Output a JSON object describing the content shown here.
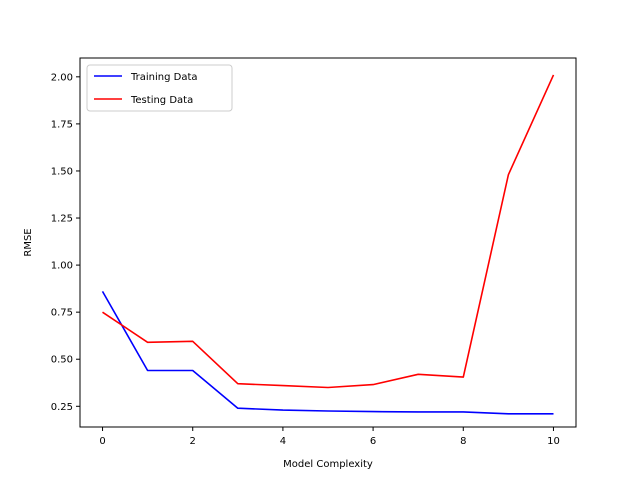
{
  "chart_data": {
    "type": "line",
    "xlabel": "Model Complexity",
    "ylabel": "RMSE",
    "xlim": [
      -0.5,
      10.5
    ],
    "ylim": [
      0.14,
      2.1
    ],
    "xticks": [
      0,
      2,
      4,
      6,
      8,
      10
    ],
    "yticks": [
      0.25,
      0.5,
      0.75,
      1.0,
      1.25,
      1.5,
      1.75,
      2.0
    ],
    "xtick_labels": [
      "0",
      "2",
      "4",
      "6",
      "8",
      "10"
    ],
    "ytick_labels": [
      "0.25",
      "0.50",
      "0.75",
      "1.00",
      "1.25",
      "1.50",
      "1.75",
      "2.00"
    ],
    "grid": false,
    "legend_position": "top-left",
    "x": [
      0,
      1,
      2,
      3,
      4,
      5,
      6,
      7,
      8,
      9,
      10
    ],
    "series": [
      {
        "name": "Training Data",
        "color": "#0000ff",
        "values": [
          0.86,
          0.44,
          0.44,
          0.24,
          0.23,
          0.225,
          0.222,
          0.22,
          0.22,
          0.21,
          0.21
        ]
      },
      {
        "name": "Testing Data",
        "color": "#ff0000",
        "values": [
          0.75,
          0.59,
          0.595,
          0.37,
          0.36,
          0.35,
          0.365,
          0.42,
          0.405,
          1.48,
          2.01
        ]
      }
    ]
  }
}
